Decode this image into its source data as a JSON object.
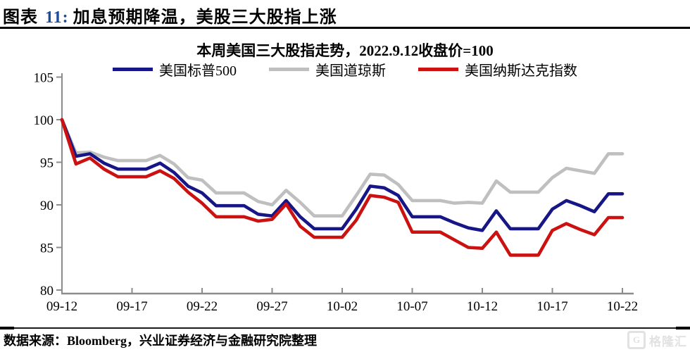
{
  "figure": {
    "label": "图表",
    "number": "11:",
    "title": "加息预期降温，美股三大股指上涨"
  },
  "chart_data": {
    "type": "line",
    "title": "本周美国三大股指走势，2022.9.12收盘价=100",
    "x": [
      "09-12",
      "09-13",
      "09-14",
      "09-15",
      "09-16",
      "09-17",
      "09-18",
      "09-19",
      "09-20",
      "09-21",
      "09-22",
      "09-23",
      "09-24",
      "09-25",
      "09-26",
      "09-27",
      "09-28",
      "09-29",
      "09-30",
      "10-01",
      "10-02",
      "10-03",
      "10-04",
      "10-05",
      "10-06",
      "10-07",
      "10-08",
      "10-09",
      "10-10",
      "10-11",
      "10-12",
      "10-13",
      "10-14",
      "10-15",
      "10-16",
      "10-17",
      "10-18",
      "10-19",
      "10-20",
      "10-21",
      "10-22"
    ],
    "x_tick_labels": [
      "09-12",
      "09-17",
      "09-22",
      "09-27",
      "10-02",
      "10-07",
      "10-12",
      "10-17",
      "10-22"
    ],
    "x_tick_indices": [
      0,
      5,
      10,
      15,
      20,
      25,
      30,
      35,
      40
    ],
    "y_ticks": [
      80,
      85,
      90,
      95,
      100,
      105
    ],
    "ylim": [
      80,
      105
    ],
    "grid": false,
    "legend_position": "top",
    "base_note": "2022.9.12收盘价=100",
    "series": [
      {
        "name": "美国标普500",
        "color": "#161687",
        "values": [
          100,
          95.7,
          96.0,
          94.9,
          94.2,
          94.2,
          94.2,
          94.9,
          93.8,
          92.2,
          91.4,
          89.9,
          89.9,
          89.9,
          88.9,
          88.7,
          90.5,
          88.6,
          87.2,
          87.2,
          87.2,
          89.5,
          92.2,
          92.0,
          91.1,
          88.6,
          88.6,
          88.6,
          87.9,
          87.3,
          87.0,
          89.3,
          87.2,
          87.2,
          87.2,
          89.5,
          90.5,
          89.9,
          89.2,
          91.3,
          91.3
        ]
      },
      {
        "name": "美国道琼斯",
        "color": "#BFBFBF",
        "values": [
          100,
          96.1,
          96.2,
          95.6,
          95.2,
          95.2,
          95.2,
          95.8,
          94.8,
          93.2,
          92.9,
          91.4,
          91.4,
          91.4,
          90.4,
          90.0,
          91.7,
          90.3,
          88.7,
          88.7,
          88.7,
          91.1,
          93.6,
          93.5,
          92.4,
          90.5,
          90.5,
          90.5,
          90.2,
          90.3,
          90.2,
          92.8,
          91.5,
          91.5,
          91.5,
          93.2,
          94.3,
          94.0,
          93.7,
          96.0,
          96.0
        ]
      },
      {
        "name": "美国纳斯达克指数",
        "color": "#CC1111",
        "values": [
          100,
          94.8,
          95.5,
          94.2,
          93.3,
          93.3,
          93.3,
          94.0,
          93.1,
          91.5,
          90.2,
          88.6,
          88.6,
          88.6,
          88.1,
          88.3,
          90.1,
          87.5,
          86.2,
          86.2,
          86.2,
          88.2,
          91.1,
          90.9,
          90.3,
          86.8,
          86.8,
          86.8,
          85.9,
          85.0,
          84.9,
          86.8,
          84.1,
          84.1,
          84.1,
          87.0,
          87.8,
          87.1,
          86.5,
          88.5,
          88.5
        ]
      }
    ]
  },
  "colors": {
    "figure_number": "#1C4B9C",
    "axis": "#8C8C8C",
    "text": "#000000"
  },
  "footer": {
    "source": "数据来源：Bloomberg，兴业证券经济与金融研究院整理"
  },
  "watermark": {
    "icon_letter": "G",
    "text": "格隆汇"
  }
}
